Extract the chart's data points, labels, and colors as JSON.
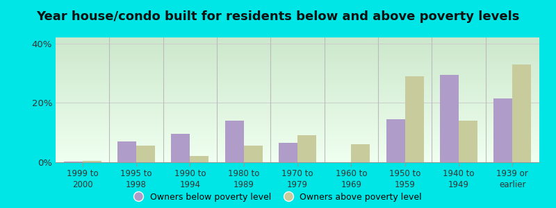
{
  "title": "Year house/condo built for residents below and above poverty levels",
  "categories": [
    "1999 to\n2000",
    "1995 to\n1998",
    "1990 to\n1994",
    "1980 to\n1989",
    "1970 to\n1979",
    "1960 to\n1969",
    "1950 to\n1959",
    "1940 to\n1949",
    "1939 or\nearlier"
  ],
  "below_poverty": [
    0.3,
    7.0,
    9.5,
    14.0,
    6.5,
    0.0,
    14.5,
    29.5,
    21.5
  ],
  "above_poverty": [
    0.5,
    5.5,
    2.0,
    5.5,
    9.0,
    6.0,
    29.0,
    14.0,
    33.0
  ],
  "below_color": "#b09cc8",
  "above_color": "#c8cc9c",
  "bg_color_outer": "#00e5e5",
  "bg_gradient_top": "#cce8cc",
  "bg_gradient_bottom": "#f0fff0",
  "ylim": [
    0,
    42
  ],
  "yticks": [
    0,
    20,
    40
  ],
  "ytick_labels": [
    "0%",
    "20%",
    "40%"
  ],
  "bar_width": 0.35,
  "title_fontsize": 13,
  "legend_below_label": "Owners below poverty level",
  "legend_above_label": "Owners above poverty level"
}
